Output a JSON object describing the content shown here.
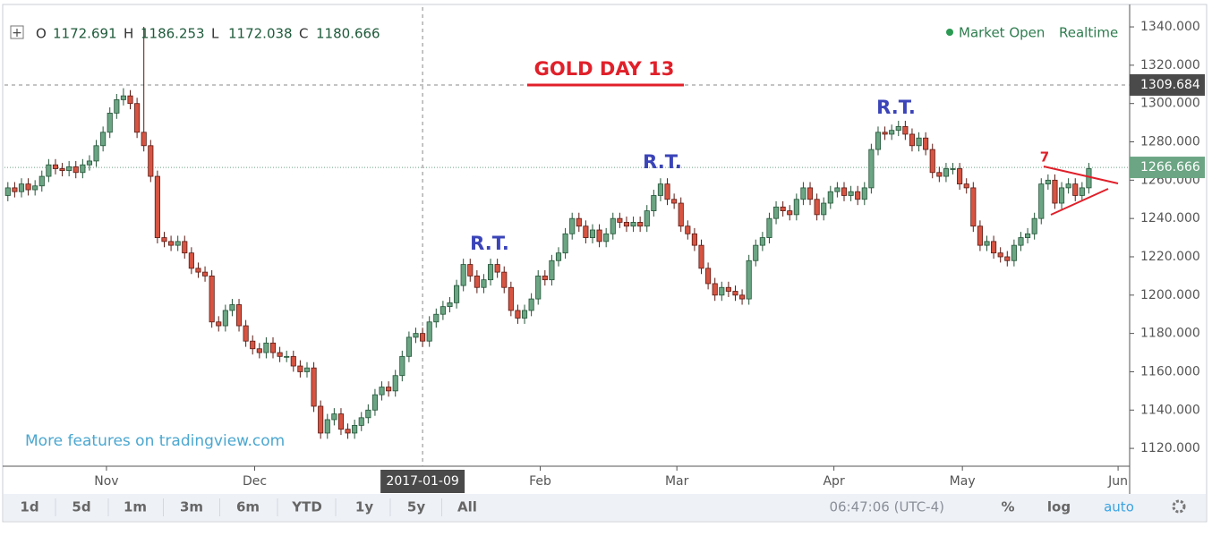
{
  "chart_data": {
    "type": "candlestick",
    "title": "GOLD DAY 13",
    "ohlc_legend": [
      {
        "label": "O",
        "value": "1172.691"
      },
      {
        "label": "H",
        "value": "1186.253"
      },
      {
        "label": "L",
        "value": "1172.038"
      },
      {
        "label": "C",
        "value": "1180.666"
      }
    ],
    "status": "Market Open",
    "feed": "Realtime",
    "annotations": [
      "R.T.",
      "R.T.",
      "R.T.",
      "7"
    ],
    "watermark": "More features on tradingview.com",
    "up_color": "#6ba583",
    "down_color": "#d75442",
    "grid": false,
    "xlim": [
      -0.5,
      165
    ],
    "xticks": [
      {
        "value": 14.5,
        "label": "Nov"
      },
      {
        "value": 36.3,
        "label": "Dec"
      },
      {
        "value": 78.3,
        "label": "Feb"
      },
      {
        "value": 98.4,
        "label": "Mar"
      },
      {
        "value": 121.5,
        "label": "Apr"
      },
      {
        "value": 140.4,
        "label": "May"
      },
      {
        "value": 163.3,
        "label": "Jun"
      }
    ],
    "ylim": [
      1110.7,
      1350.3
    ],
    "yticks": [
      {
        "value": 1120,
        "label": "1120.000"
      },
      {
        "value": 1140,
        "label": "1140.000"
      },
      {
        "value": 1160,
        "label": "1160.000"
      },
      {
        "value": 1180,
        "label": "1180.000"
      },
      {
        "value": 1200,
        "label": "1200.000"
      },
      {
        "value": 1220,
        "label": "1220.000"
      },
      {
        "value": 1240,
        "label": "1240.000"
      },
      {
        "value": 1260,
        "label": "1260.000"
      },
      {
        "value": 1280,
        "label": "1280.000"
      },
      {
        "value": 1300,
        "label": "1300.000"
      },
      {
        "value": 1320,
        "label": "1320.000"
      },
      {
        "value": 1340,
        "label": "1340.000"
      }
    ],
    "crosshair": {
      "x": {
        "value": 61,
        "label": "2017-01-09"
      },
      "y": 1309.684
    },
    "last_price": 1266.666,
    "open": [
      1252,
      1256,
      1254,
      1258,
      1255,
      1257,
      1262,
      1268,
      1266,
      1265,
      1267,
      1264,
      1268,
      1270,
      1278,
      1285,
      1295,
      1302,
      1304,
      1300,
      1285,
      1278,
      1262,
      1230,
      1228,
      1226,
      1228,
      1222,
      1214,
      1212,
      1210,
      1186,
      1184,
      1192,
      1195,
      1184,
      1176,
      1172,
      1170,
      1175,
      1170,
      1168,
      1168,
      1163,
      1160,
      1162,
      1142,
      1128,
      1135,
      1138,
      1130,
      1128,
      1132,
      1136,
      1140,
      1148,
      1152,
      1150,
      1158,
      1168,
      1178,
      1180,
      1176,
      1186,
      1190,
      1194,
      1196,
      1205,
      1216,
      1210,
      1204,
      1208,
      1216,
      1212,
      1204,
      1192,
      1188,
      1192,
      1198,
      1210,
      1208,
      1218,
      1222,
      1232,
      1240,
      1236,
      1230,
      1234,
      1228,
      1232,
      1240,
      1238,
      1236,
      1238,
      1236,
      1244,
      1252,
      1258,
      1250,
      1248,
      1236,
      1232,
      1226,
      1214,
      1206,
      1200,
      1204,
      1202,
      1200,
      1198,
      1218,
      1226,
      1230,
      1240,
      1246,
      1244,
      1242,
      1250,
      1256,
      1250,
      1242,
      1248,
      1254,
      1256,
      1252,
      1254,
      1250,
      1256,
      1276,
      1285,
      1284,
      1286,
      1288,
      1284,
      1278,
      1282,
      1276,
      1264,
      1262,
      1266,
      1266,
      1258,
      1256,
      1236,
      1226,
      1228,
      1222,
      1220,
      1218,
      1226,
      1230,
      1232,
      1240,
      1258,
      1260,
      1248,
      1256,
      1258,
      1252,
      1256
    ],
    "high": [
      1259,
      1259,
      1261,
      1261,
      1260,
      1265,
      1271,
      1271,
      1269,
      1270,
      1270,
      1271,
      1273,
      1281,
      1288,
      1298,
      1305,
      1308,
      1307,
      1303,
      1340,
      1281,
      1265,
      1233,
      1231,
      1231,
      1231,
      1225,
      1217,
      1215,
      1213,
      1189,
      1195,
      1198,
      1198,
      1187,
      1179,
      1175,
      1178,
      1178,
      1173,
      1171,
      1171,
      1166,
      1165,
      1165,
      1145,
      1138,
      1141,
      1141,
      1133,
      1135,
      1139,
      1143,
      1151,
      1155,
      1155,
      1161,
      1171,
      1181,
      1183,
      1183,
      1189,
      1193,
      1197,
      1199,
      1208,
      1219,
      1219,
      1213,
      1211,
      1219,
      1219,
      1215,
      1207,
      1195,
      1195,
      1201,
      1213,
      1213,
      1221,
      1225,
      1235,
      1243,
      1243,
      1239,
      1237,
      1237,
      1235,
      1243,
      1243,
      1241,
      1241,
      1241,
      1247,
      1255,
      1261,
      1261,
      1253,
      1251,
      1239,
      1235,
      1229,
      1217,
      1209,
      1207,
      1207,
      1205,
      1203,
      1221,
      1229,
      1233,
      1243,
      1249,
      1249,
      1247,
      1253,
      1259,
      1259,
      1253,
      1251,
      1257,
      1259,
      1259,
      1257,
      1257,
      1259,
      1279,
      1288,
      1288,
      1289,
      1291,
      1291,
      1287,
      1285,
      1285,
      1279,
      1267,
      1269,
      1269,
      1269,
      1261,
      1259,
      1239,
      1231,
      1231,
      1225,
      1223,
      1229,
      1233,
      1235,
      1243,
      1261,
      1263,
      1263,
      1259,
      1261,
      1261,
      1259,
      1269
    ],
    "low": [
      1249,
      1251,
      1251,
      1252,
      1252,
      1254,
      1259,
      1263,
      1262,
      1262,
      1261,
      1261,
      1265,
      1267,
      1275,
      1282,
      1292,
      1299,
      1297,
      1282,
      1275,
      1259,
      1227,
      1225,
      1223,
      1223,
      1219,
      1211,
      1209,
      1207,
      1183,
      1181,
      1181,
      1189,
      1181,
      1173,
      1169,
      1167,
      1167,
      1167,
      1165,
      1165,
      1160,
      1157,
      1157,
      1139,
      1125,
      1125,
      1132,
      1127,
      1125,
      1125,
      1129,
      1133,
      1137,
      1145,
      1147,
      1147,
      1155,
      1165,
      1175,
      1173,
      1173,
      1183,
      1187,
      1191,
      1193,
      1202,
      1207,
      1201,
      1201,
      1205,
      1209,
      1201,
      1189,
      1185,
      1185,
      1189,
      1195,
      1205,
      1205,
      1215,
      1219,
      1229,
      1233,
      1227,
      1227,
      1225,
      1225,
      1229,
      1235,
      1233,
      1233,
      1233,
      1233,
      1241,
      1249,
      1247,
      1245,
      1233,
      1229,
      1223,
      1211,
      1203,
      1197,
      1197,
      1199,
      1197,
      1195,
      1195,
      1215,
      1223,
      1227,
      1237,
      1241,
      1239,
      1239,
      1247,
      1247,
      1239,
      1239,
      1245,
      1251,
      1249,
      1249,
      1247,
      1247,
      1253,
      1273,
      1281,
      1281,
      1283,
      1281,
      1275,
      1275,
      1273,
      1261,
      1259,
      1259,
      1263,
      1255,
      1253,
      1233,
      1223,
      1223,
      1219,
      1217,
      1215,
      1215,
      1223,
      1227,
      1229,
      1237,
      1255,
      1245,
      1245,
      1253,
      1249,
      1249,
      1253
    ],
    "close": [
      1256,
      1254,
      1258,
      1255,
      1257,
      1262,
      1268,
      1266,
      1265,
      1267,
      1264,
      1268,
      1270,
      1278,
      1285,
      1295,
      1302,
      1304,
      1300,
      1285,
      1278,
      1262,
      1230,
      1228,
      1226,
      1228,
      1222,
      1214,
      1212,
      1210,
      1186,
      1184,
      1192,
      1195,
      1184,
      1176,
      1172,
      1170,
      1175,
      1170,
      1168,
      1168,
      1163,
      1160,
      1162,
      1142,
      1128,
      1135,
      1138,
      1130,
      1128,
      1132,
      1136,
      1140,
      1148,
      1152,
      1150,
      1158,
      1168,
      1178,
      1180,
      1176,
      1186,
      1190,
      1194,
      1196,
      1205,
      1216,
      1210,
      1204,
      1208,
      1216,
      1212,
      1204,
      1192,
      1188,
      1192,
      1198,
      1210,
      1208,
      1218,
      1222,
      1232,
      1240,
      1236,
      1230,
      1234,
      1228,
      1232,
      1240,
      1238,
      1236,
      1238,
      1236,
      1244,
      1252,
      1258,
      1250,
      1248,
      1236,
      1232,
      1226,
      1214,
      1206,
      1200,
      1204,
      1202,
      1200,
      1198,
      1218,
      1226,
      1230,
      1240,
      1246,
      1244,
      1242,
      1250,
      1256,
      1250,
      1242,
      1248,
      1254,
      1256,
      1252,
      1254,
      1250,
      1256,
      1276,
      1285,
      1284,
      1286,
      1288,
      1284,
      1278,
      1282,
      1276,
      1264,
      1262,
      1266,
      1266,
      1258,
      1256,
      1236,
      1226,
      1228,
      1222,
      1220,
      1218,
      1226,
      1230,
      1232,
      1240,
      1258,
      1260,
      1248,
      1256,
      1258,
      1252,
      1256,
      1266
    ]
  },
  "toolbar": {
    "ranges": [
      "1d",
      "5d",
      "1m",
      "3m",
      "6m",
      "YTD",
      "1y",
      "5y",
      "All"
    ],
    "time": "06:47:06 (UTC-4)",
    "percent": "%",
    "log": "log",
    "auto": "auto"
  }
}
